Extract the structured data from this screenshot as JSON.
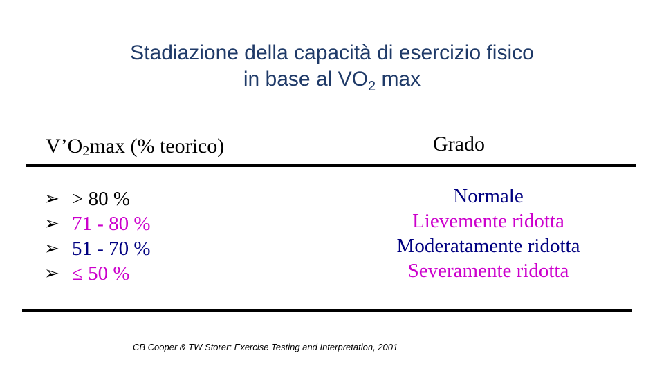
{
  "title": {
    "line1": "Stadiazione della capacità di esercizio fisico",
    "line2_prefix": "in base al VO",
    "line2_sub": "2",
    "line2_suffix": " max"
  },
  "table": {
    "left_header": {
      "prefix": "V’O",
      "sub": "2",
      "suffix": "max (% teorico)"
    },
    "right_header": "Grado",
    "arrow_glyph": "➢",
    "rows": [
      {
        "range": "> 80 %",
        "grade": "Normale",
        "range_color": "#000000",
        "grade_color": "#000080"
      },
      {
        "range": "71 - 80 %",
        "grade": "Lievemente ridotta",
        "range_color": "#cc00cc",
        "grade_color": "#cc00cc"
      },
      {
        "range": "51 - 70 %",
        "grade": "Moderatamente ridotta",
        "range_color": "#000080",
        "grade_color": "#000080"
      },
      {
        "range": "≤ 50 %",
        "grade": "Severamente ridotta",
        "range_color": "#cc00cc",
        "grade_color": "#cc00cc"
      }
    ]
  },
  "citation": "CB Cooper & TW Storer: Exercise Testing and Interpretation, 2001"
}
